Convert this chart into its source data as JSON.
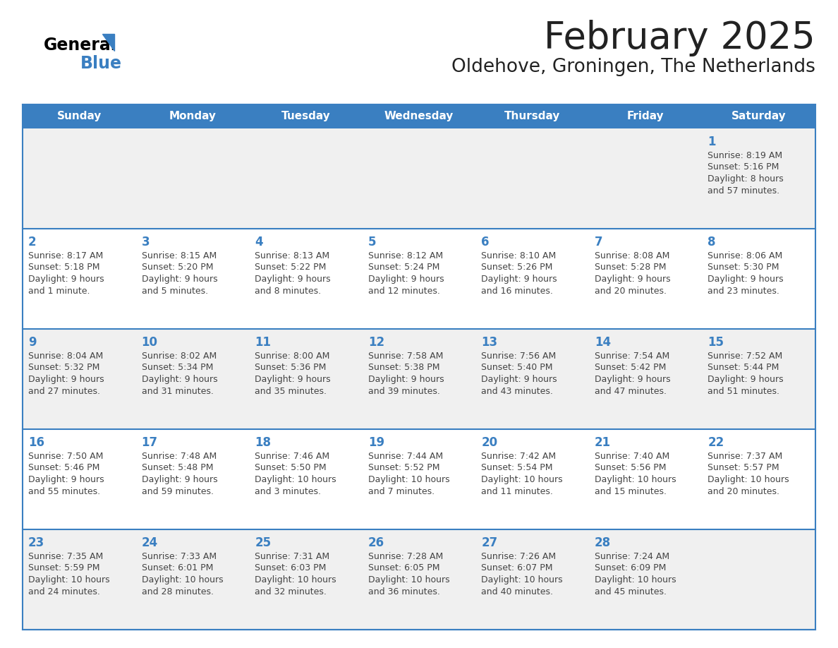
{
  "title": "February 2025",
  "subtitle": "Oldehove, Groningen, The Netherlands",
  "days_of_week": [
    "Sunday",
    "Monday",
    "Tuesday",
    "Wednesday",
    "Thursday",
    "Friday",
    "Saturday"
  ],
  "header_bg": "#3A7FC1",
  "header_text": "#FFFFFF",
  "row_bg_odd": "#F0F0F0",
  "row_bg_even": "#FFFFFF",
  "separator_color": "#3A7FC1",
  "day_num_color": "#3A7FC1",
  "text_color": "#444444",
  "title_color": "#222222",
  "calendar_data": [
    [
      null,
      null,
      null,
      null,
      null,
      null,
      {
        "day": 1,
        "sunrise": "8:19 AM",
        "sunset": "5:16 PM",
        "daylight": "8 hours",
        "daylight2": "and 57 minutes."
      }
    ],
    [
      {
        "day": 2,
        "sunrise": "8:17 AM",
        "sunset": "5:18 PM",
        "daylight": "9 hours",
        "daylight2": "and 1 minute."
      },
      {
        "day": 3,
        "sunrise": "8:15 AM",
        "sunset": "5:20 PM",
        "daylight": "9 hours",
        "daylight2": "and 5 minutes."
      },
      {
        "day": 4,
        "sunrise": "8:13 AM",
        "sunset": "5:22 PM",
        "daylight": "9 hours",
        "daylight2": "and 8 minutes."
      },
      {
        "day": 5,
        "sunrise": "8:12 AM",
        "sunset": "5:24 PM",
        "daylight": "9 hours",
        "daylight2": "and 12 minutes."
      },
      {
        "day": 6,
        "sunrise": "8:10 AM",
        "sunset": "5:26 PM",
        "daylight": "9 hours",
        "daylight2": "and 16 minutes."
      },
      {
        "day": 7,
        "sunrise": "8:08 AM",
        "sunset": "5:28 PM",
        "daylight": "9 hours",
        "daylight2": "and 20 minutes."
      },
      {
        "day": 8,
        "sunrise": "8:06 AM",
        "sunset": "5:30 PM",
        "daylight": "9 hours",
        "daylight2": "and 23 minutes."
      }
    ],
    [
      {
        "day": 9,
        "sunrise": "8:04 AM",
        "sunset": "5:32 PM",
        "daylight": "9 hours",
        "daylight2": "and 27 minutes."
      },
      {
        "day": 10,
        "sunrise": "8:02 AM",
        "sunset": "5:34 PM",
        "daylight": "9 hours",
        "daylight2": "and 31 minutes."
      },
      {
        "day": 11,
        "sunrise": "8:00 AM",
        "sunset": "5:36 PM",
        "daylight": "9 hours",
        "daylight2": "and 35 minutes."
      },
      {
        "day": 12,
        "sunrise": "7:58 AM",
        "sunset": "5:38 PM",
        "daylight": "9 hours",
        "daylight2": "and 39 minutes."
      },
      {
        "day": 13,
        "sunrise": "7:56 AM",
        "sunset": "5:40 PM",
        "daylight": "9 hours",
        "daylight2": "and 43 minutes."
      },
      {
        "day": 14,
        "sunrise": "7:54 AM",
        "sunset": "5:42 PM",
        "daylight": "9 hours",
        "daylight2": "and 47 minutes."
      },
      {
        "day": 15,
        "sunrise": "7:52 AM",
        "sunset": "5:44 PM",
        "daylight": "9 hours",
        "daylight2": "and 51 minutes."
      }
    ],
    [
      {
        "day": 16,
        "sunrise": "7:50 AM",
        "sunset": "5:46 PM",
        "daylight": "9 hours",
        "daylight2": "and 55 minutes."
      },
      {
        "day": 17,
        "sunrise": "7:48 AM",
        "sunset": "5:48 PM",
        "daylight": "9 hours",
        "daylight2": "and 59 minutes."
      },
      {
        "day": 18,
        "sunrise": "7:46 AM",
        "sunset": "5:50 PM",
        "daylight": "10 hours",
        "daylight2": "and 3 minutes."
      },
      {
        "day": 19,
        "sunrise": "7:44 AM",
        "sunset": "5:52 PM",
        "daylight": "10 hours",
        "daylight2": "and 7 minutes."
      },
      {
        "day": 20,
        "sunrise": "7:42 AM",
        "sunset": "5:54 PM",
        "daylight": "10 hours",
        "daylight2": "and 11 minutes."
      },
      {
        "day": 21,
        "sunrise": "7:40 AM",
        "sunset": "5:56 PM",
        "daylight": "10 hours",
        "daylight2": "and 15 minutes."
      },
      {
        "day": 22,
        "sunrise": "7:37 AM",
        "sunset": "5:57 PM",
        "daylight": "10 hours",
        "daylight2": "and 20 minutes."
      }
    ],
    [
      {
        "day": 23,
        "sunrise": "7:35 AM",
        "sunset": "5:59 PM",
        "daylight": "10 hours",
        "daylight2": "and 24 minutes."
      },
      {
        "day": 24,
        "sunrise": "7:33 AM",
        "sunset": "6:01 PM",
        "daylight": "10 hours",
        "daylight2": "and 28 minutes."
      },
      {
        "day": 25,
        "sunrise": "7:31 AM",
        "sunset": "6:03 PM",
        "daylight": "10 hours",
        "daylight2": "and 32 minutes."
      },
      {
        "day": 26,
        "sunrise": "7:28 AM",
        "sunset": "6:05 PM",
        "daylight": "10 hours",
        "daylight2": "and 36 minutes."
      },
      {
        "day": 27,
        "sunrise": "7:26 AM",
        "sunset": "6:07 PM",
        "daylight": "10 hours",
        "daylight2": "and 40 minutes."
      },
      {
        "day": 28,
        "sunrise": "7:24 AM",
        "sunset": "6:09 PM",
        "daylight": "10 hours",
        "daylight2": "and 45 minutes."
      },
      null
    ]
  ]
}
